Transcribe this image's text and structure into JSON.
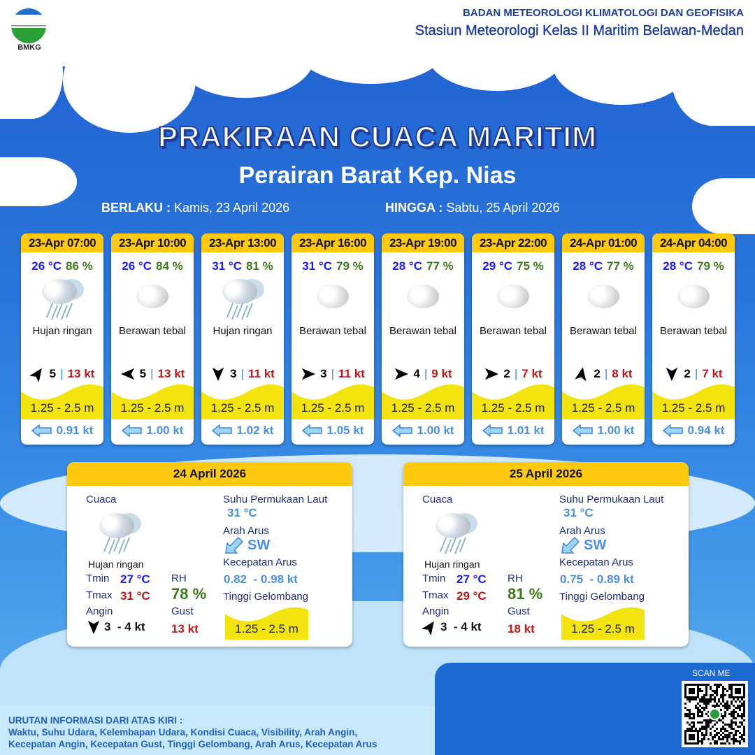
{
  "header": {
    "logo_text": "BMKG",
    "agency": "BADAN METEOROLOGI KLIMATOLOGI DAN GEOFISIKA",
    "station": "Stasiun Meteorologi Kelas II Maritim Belawan-Medan"
  },
  "title": "PRAKIRAAN CUACA MARITIM",
  "subtitle": "Perairan Barat Kep. Nias",
  "validity": {
    "from_label": "BERLAKU :",
    "from": "Kamis, 23 April 2026",
    "to_label": "HINGGA :",
    "to": "Sabtu, 25 April 2026"
  },
  "colors": {
    "header_yellow": "#ffc90e",
    "wave_yellow": "#f2e40c",
    "temp": "#1a1aff",
    "rh": "#3c7a1c",
    "gust": "#c01818",
    "current": "#4a90e2"
  },
  "forecasts": [
    {
      "time": "23-Apr 07:00",
      "temp": "26 °C",
      "rh": "86 %",
      "icon": "light-rain-icon",
      "condition": "Hujan ringan",
      "wind_dir_deg": -55,
      "wind_speed": "5",
      "gust": "13 kt",
      "wave": "1.25 - 2.5 m",
      "current_icon": "arrow-left-icon",
      "current": "0.91 kt"
    },
    {
      "time": "23-Apr 10:00",
      "temp": "26 °C",
      "rh": "84 %",
      "icon": "overcast-cloud-icon",
      "condition": "Berawan tebal",
      "wind_dir_deg": 180,
      "wind_speed": "5",
      "gust": "13 kt",
      "wave": "1.25 - 2.5 m",
      "current_icon": "arrow-left-icon",
      "current": "1.00 kt"
    },
    {
      "time": "23-Apr 13:00",
      "temp": "31 °C",
      "rh": "81 %",
      "icon": "light-rain-icon",
      "condition": "Hujan ringan",
      "wind_dir_deg": 90,
      "wind_speed": "3",
      "gust": "11 kt",
      "wave": "1.25 - 2.5 m",
      "current_icon": "arrow-left-icon",
      "current": "1.02 kt"
    },
    {
      "time": "23-Apr 16:00",
      "temp": "31 °C",
      "rh": "79 %",
      "icon": "overcast-cloud-icon",
      "condition": "Berawan tebal",
      "wind_dir_deg": 0,
      "wind_speed": "3",
      "gust": "11 kt",
      "wave": "1.25 - 2.5 m",
      "current_icon": "arrow-left-icon",
      "current": "1.05 kt"
    },
    {
      "time": "23-Apr 19:00",
      "temp": "28 °C",
      "rh": "77 %",
      "icon": "overcast-cloud-icon",
      "condition": "Berawan tebal",
      "wind_dir_deg": 0,
      "wind_speed": "4",
      "gust": "9 kt",
      "wave": "1.25 - 2.5 m",
      "current_icon": "arrow-left-icon",
      "current": "1.00 kt"
    },
    {
      "time": "23-Apr 22:00",
      "temp": "29 °C",
      "rh": "75 %",
      "icon": "overcast-cloud-icon",
      "condition": "Berawan tebal",
      "wind_dir_deg": 0,
      "wind_speed": "2",
      "gust": "7 kt",
      "wave": "1.25 - 2.5 m",
      "current_icon": "arrow-left-icon",
      "current": "1.01 kt"
    },
    {
      "time": "24-Apr 01:00",
      "temp": "28 °C",
      "rh": "77 %",
      "icon": "overcast-cloud-icon",
      "condition": "Berawan tebal",
      "wind_dir_deg": -80,
      "wind_speed": "2",
      "gust": "8 kt",
      "wave": "1.25 - 2.5 m",
      "current_icon": "arrow-left-icon",
      "current": "1.00 kt"
    },
    {
      "time": "24-Apr 04:00",
      "temp": "28 °C",
      "rh": "79 %",
      "icon": "overcast-cloud-icon",
      "condition": "Berawan tebal",
      "wind_dir_deg": 90,
      "wind_speed": "2",
      "gust": "7 kt",
      "wave": "1.25 - 2.5 m",
      "current_icon": "arrow-left-icon",
      "current": "0.94 kt"
    }
  ],
  "daily": [
    {
      "date": "24 April 2026",
      "weather_label": "Cuaca",
      "condition": "Hujan ringan",
      "tmin_label": "Tmin",
      "tmin": "27 °C",
      "tmax_label": "Tmax",
      "tmax": "31 °C",
      "rh_label": "RH",
      "rh": "78 %",
      "wind_label": "Angin",
      "wind_dir_deg": 90,
      "wind": "3  - 4 kt",
      "gust_label": "Gust",
      "gust": "13 kt",
      "sst_label": "Suhu Permukaan Laut",
      "sst": "31 °C",
      "current_dir_label": "Arah Arus",
      "current_dir": "SW",
      "current_speed_label": "Kecepatan Arus",
      "current_speed": "0.82  - 0.98 kt",
      "wave_label": "Tinggi Gelombang",
      "wave": "1.25 - 2.5 m"
    },
    {
      "date": "25 April 2026",
      "weather_label": "Cuaca",
      "condition": "Hujan ringan",
      "tmin_label": "Tmin",
      "tmin": "27 °C",
      "tmax_label": "Tmax",
      "tmax": "29 °C",
      "rh_label": "RH",
      "rh": "81 %",
      "wind_label": "Angin",
      "wind_dir_deg": -55,
      "wind": "3  - 4 kt",
      "gust_label": "Gust",
      "gust": "18 kt",
      "sst_label": "Suhu Permukaan Laut",
      "sst": "31 °C",
      "current_dir_label": "Arah Arus",
      "current_dir": "SW",
      "current_speed_label": "Kecepatan Arus",
      "current_speed": "0.75  - 0.89 kt",
      "wave_label": "Tinggi Gelombang",
      "wave": "1.25 - 2.5 m"
    }
  ],
  "footer": {
    "heading": "URUTAN INFORMASI DARI ATAS KIRI :",
    "line1": "Waktu, Suhu Udara, Kelembapan Udara, Kondisi Cuaca, Visibility, Arah Angin,",
    "line2": "Kecepatan Angin, Kecepatan Gust, Tinggi Gelombang, Arah Arus, Kecepatan Arus",
    "scan_label": "SCAN ME"
  }
}
